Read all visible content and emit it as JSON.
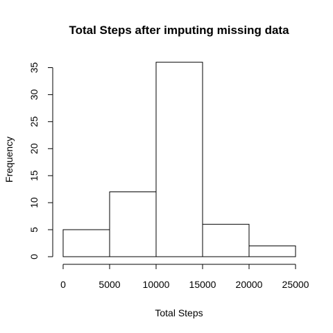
{
  "chart_data": {
    "type": "bar",
    "title": "Total Steps after imputing missing data",
    "xlabel": "Total Steps",
    "ylabel": "Frequency",
    "bins": [
      {
        "start": 0,
        "end": 5000,
        "count": 5
      },
      {
        "start": 5000,
        "end": 10000,
        "count": 12
      },
      {
        "start": 10000,
        "end": 15000,
        "count": 36
      },
      {
        "start": 15000,
        "end": 20000,
        "count": 6
      },
      {
        "start": 20000,
        "end": 25000,
        "count": 2
      }
    ],
    "xticks": [
      0,
      5000,
      10000,
      15000,
      20000,
      25000
    ],
    "xtick_labels": [
      "0",
      "5000",
      "10000",
      "15000",
      "20000",
      "25000"
    ],
    "yticks": [
      0,
      5,
      10,
      15,
      20,
      25,
      30,
      35
    ],
    "ytick_labels": [
      "0",
      "5",
      "10",
      "15",
      "20",
      "25",
      "30",
      "35"
    ],
    "xlim": [
      0,
      25000
    ],
    "ylim": [
      0,
      35
    ],
    "grid": false,
    "bar_fill": "#ffffff",
    "bar_stroke": "#000000"
  }
}
